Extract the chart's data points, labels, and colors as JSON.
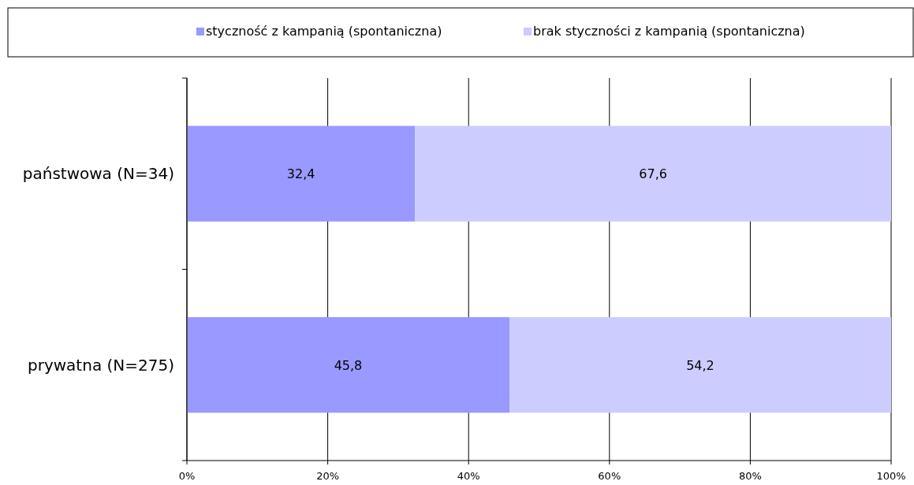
{
  "chart_data": {
    "type": "bar",
    "orientation": "horizontal",
    "stacked": true,
    "categories": [
      "państwowa (N=34)",
      "prywatna (N=275)"
    ],
    "series": [
      {
        "name": "styczność z kampanią (spontaniczna)",
        "color": "#9999ff",
        "values": [
          32.4,
          45.8
        ],
        "value_labels": [
          "32,4",
          "45,8"
        ]
      },
      {
        "name": "brak styczności z kampanią (spontaniczna)",
        "color": "#ccccff",
        "values": [
          67.6,
          54.2
        ],
        "value_labels": [
          "67,6",
          "54,2"
        ]
      }
    ],
    "xlim": [
      0,
      100
    ],
    "xticks": [
      {
        "value": 0,
        "label": "0%"
      },
      {
        "value": 20,
        "label": "20%"
      },
      {
        "value": 40,
        "label": "40%"
      },
      {
        "value": 60,
        "label": "60%"
      },
      {
        "value": 80,
        "label": "80%"
      },
      {
        "value": 100,
        "label": "100%"
      }
    ],
    "grid": "x",
    "legend": "top"
  }
}
